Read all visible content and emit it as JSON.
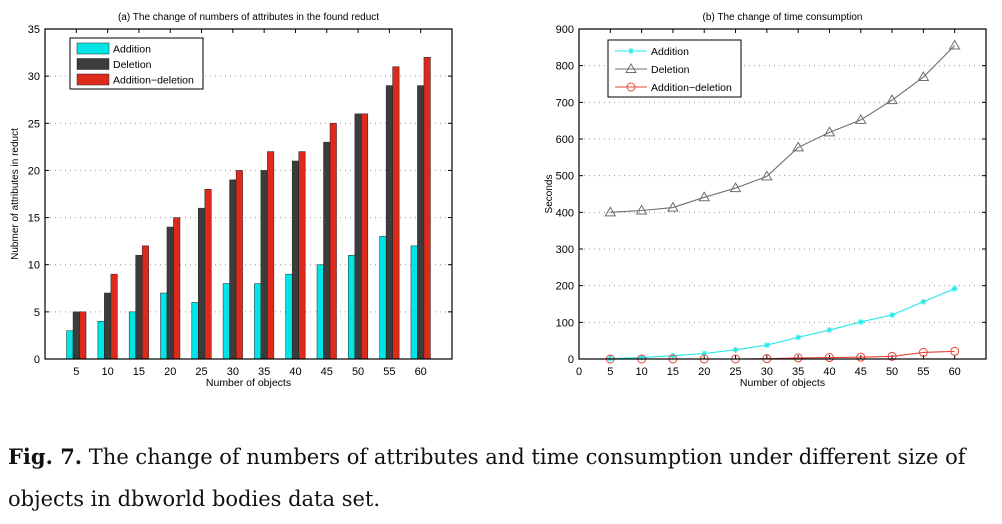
{
  "chart_data": [
    {
      "type": "bar",
      "title": "(a) The change of numbers of attributes in the found reduct",
      "xlabel": "Number of objects",
      "ylabel": "Nubmer of attributes in reduct",
      "categories": [
        "5",
        "10",
        "15",
        "20",
        "25",
        "30",
        "35",
        "40",
        "45",
        "50",
        "55",
        "60"
      ],
      "ylim": [
        0,
        35
      ],
      "yticks": [
        0,
        5,
        10,
        15,
        20,
        25,
        30,
        35
      ],
      "grid": true,
      "legend": "top-left",
      "series": [
        {
          "name": "Addition",
          "color": "#00e5e5",
          "values": [
            3,
            4,
            5,
            7,
            6,
            8,
            8,
            9,
            10,
            11,
            13,
            12
          ]
        },
        {
          "name": "Deletion",
          "color": "#3c3c3c",
          "values": [
            5,
            7,
            11,
            14,
            16,
            19,
            20,
            21,
            23,
            26,
            29,
            29
          ]
        },
        {
          "name": "Addition−deletion",
          "color": "#dd2a1a",
          "values": [
            5,
            9,
            12,
            15,
            18,
            20,
            22,
            22,
            25,
            26,
            31,
            32
          ]
        }
      ]
    },
    {
      "type": "line",
      "title": "(b) The change of time consumption",
      "xlabel": "Number of objects",
      "ylabel": "Seconds",
      "x": [
        5,
        10,
        15,
        20,
        25,
        30,
        35,
        40,
        45,
        50,
        55,
        60
      ],
      "xlim": [
        0,
        65
      ],
      "xticks": [
        0,
        5,
        10,
        15,
        20,
        25,
        30,
        35,
        40,
        45,
        50,
        55,
        60
      ],
      "ylim": [
        0,
        900
      ],
      "yticks": [
        0,
        100,
        200,
        300,
        400,
        500,
        600,
        700,
        800,
        900
      ],
      "grid": true,
      "legend": "top-left",
      "series": [
        {
          "name": "Addition",
          "color": "#22e8e8",
          "marker": "asterisk",
          "values": [
            1,
            4,
            9,
            15,
            25,
            38,
            59,
            79,
            101,
            120,
            156,
            192
          ]
        },
        {
          "name": "Deletion",
          "color": "#6e6e6e",
          "marker": "triangle",
          "values": [
            400,
            405,
            413,
            441,
            466,
            498,
            577,
            618,
            652,
            706,
            769,
            855
          ]
        },
        {
          "name": "Addition−deletion",
          "color": "#e8453a",
          "marker": "circle",
          "values": [
            0,
            0,
            0,
            0,
            0,
            1,
            3,
            4,
            5,
            7,
            18,
            21
          ]
        }
      ]
    }
  ],
  "caption": {
    "label": "Fig. 7.",
    "text": " The change of numbers of attributes and time consumption under different size of objects in dbworld bodies data set."
  }
}
